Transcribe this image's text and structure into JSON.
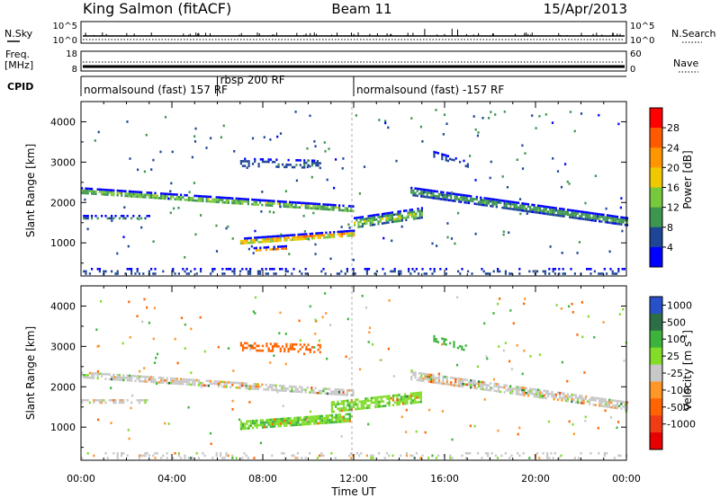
{
  "header": {
    "station": "King Salmon (fitACF)",
    "beam": "Beam 11",
    "date": "15/Apr/2013"
  },
  "noise_panel": {
    "left_label": "N.Sky",
    "right_label": "N.Search",
    "left_ticks": [
      "10^5",
      "10^0"
    ],
    "right_ticks": [
      "10^5",
      "10^0"
    ]
  },
  "freq_panel": {
    "left_label_line1": "Freq.",
    "left_label_line2": "[MHz]",
    "right_label": "Nave",
    "left_ticks": [
      "18",
      "8"
    ],
    "right_ticks": [
      "60",
      "0"
    ]
  },
  "cpid": {
    "label": "CPID",
    "segments": [
      {
        "text": "normalsound (fast) 157 RF",
        "start_hour": 0
      },
      {
        "text": "rbsp 200 RF",
        "start_hour": 6
      },
      {
        "text": "normalsound (fast) -157 RF",
        "start_hour": 12
      }
    ]
  },
  "power_colorbar": {
    "label": "Power [dB]",
    "ticks": [
      "28",
      "24",
      "20",
      "16",
      "12",
      "8",
      "4"
    ],
    "colors": [
      "#ff0000",
      "#ff5a00",
      "#ff9600",
      "#f0c800",
      "#78c83c",
      "#3c9650",
      "#1e4696",
      "#0000ff"
    ]
  },
  "velocity_colorbar": {
    "label": "Velocity [m s",
    "label_sup": "-1",
    "label_end": "]",
    "ticks": [
      "1000",
      "500",
      "100",
      "25",
      "-25",
      "-100",
      "-500",
      "-1000"
    ],
    "colors": [
      "#2850c8",
      "#2d6e46",
      "#3cb43c",
      "#82dc28",
      "#c8c8c8",
      "#ff9628",
      "#ff6400",
      "#f03c14",
      "#e60000"
    ]
  },
  "axes": {
    "ylabel": "Slant Range [km]",
    "yticks": [
      "4000",
      "3000",
      "2000",
      "1000"
    ],
    "xlabel": "Time UT",
    "xticks": [
      "00:00",
      "04:00",
      "08:00",
      "12:00",
      "16:00",
      "20:00",
      "00:00"
    ]
  },
  "chart_data": {
    "type": "heatmap",
    "title": "King Salmon (fitACF) Beam 11 15/Apr/2013",
    "xlabel": "Time UT",
    "ylabel": "Slant Range [km]",
    "xlim_hours": [
      0,
      24
    ],
    "ylim_km": [
      180,
      4500
    ],
    "panels": [
      {
        "name": "Power",
        "unit": "dB",
        "color_levels": [
          4,
          8,
          12,
          16,
          20,
          24,
          28
        ],
        "features": [
          {
            "t_start": 0,
            "t_end": 12,
            "r_start": 2300,
            "r_end": 1850,
            "width_km": 160,
            "peak": 18,
            "density": 0.8
          },
          {
            "t_start": 0,
            "t_end": 3,
            "r_start": 1650,
            "r_end": 1650,
            "width_km": 90,
            "peak": 10,
            "density": 0.55
          },
          {
            "t_start": 7,
            "t_end": 12,
            "r_start": 1050,
            "r_end": 1250,
            "width_km": 160,
            "peak": 28,
            "density": 0.85
          },
          {
            "t_start": 7.5,
            "t_end": 9,
            "r_start": 850,
            "r_end": 900,
            "width_km": 90,
            "peak": 30,
            "density": 0.8
          },
          {
            "t_start": 12,
            "t_end": 15,
            "r_start": 1500,
            "r_end": 1750,
            "width_km": 280,
            "peak": 18,
            "density": 0.75
          },
          {
            "t_start": 14.5,
            "t_end": 24,
            "r_start": 2300,
            "r_end": 1550,
            "width_km": 180,
            "peak": 14,
            "density": 0.8
          },
          {
            "t_start": 7,
            "t_end": 10.5,
            "r_start": 3000,
            "r_end": 2950,
            "width_km": 220,
            "peak": 8,
            "density": 0.4
          },
          {
            "t_start": 15.5,
            "t_end": 17,
            "r_start": 3200,
            "r_end": 2950,
            "width_km": 160,
            "peak": 6,
            "density": 0.45
          },
          {
            "t_start": 0,
            "t_end": 24,
            "r_start": 300,
            "r_end": 300,
            "width_km": 160,
            "peak": 8,
            "density": 0.25
          }
        ]
      },
      {
        "name": "Velocity",
        "unit": "m s^-1",
        "color_levels": [
          -1000,
          -500,
          -100,
          -25,
          25,
          100,
          500,
          1000
        ],
        "features": [
          {
            "t_start": 0,
            "t_end": 12,
            "r_start": 2300,
            "r_end": 1850,
            "width_km": 160,
            "value": 0,
            "density": 0.75
          },
          {
            "t_start": 0,
            "t_end": 3,
            "r_start": 1650,
            "r_end": 1650,
            "width_km": 90,
            "value": 0,
            "density": 0.5
          },
          {
            "t_start": 7,
            "t_end": 12,
            "r_start": 1050,
            "r_end": 1250,
            "width_km": 220,
            "value": 90,
            "density": 0.85
          },
          {
            "t_start": 11,
            "t_end": 15,
            "r_start": 1500,
            "r_end": 1750,
            "width_km": 280,
            "value": 80,
            "density": 0.75
          },
          {
            "t_start": 14.5,
            "t_end": 24,
            "r_start": 2300,
            "r_end": 1550,
            "width_km": 180,
            "value": 0,
            "density": 0.75
          },
          {
            "t_start": 7,
            "t_end": 10.5,
            "r_start": 3000,
            "r_end": 2950,
            "width_km": 220,
            "value": -200,
            "density": 0.45
          },
          {
            "t_start": 15.5,
            "t_end": 17,
            "r_start": 3200,
            "r_end": 2950,
            "width_km": 160,
            "value": 200,
            "density": 0.45
          },
          {
            "t_start": 0,
            "t_end": 24,
            "r_start": 300,
            "r_end": 300,
            "width_km": 160,
            "value": 0,
            "density": 0.2
          }
        ]
      }
    ]
  }
}
